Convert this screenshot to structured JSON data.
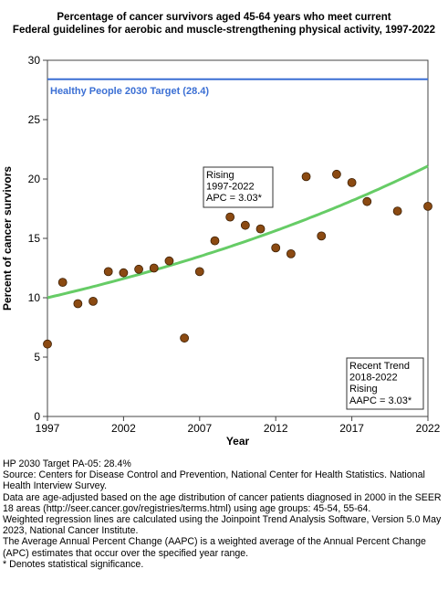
{
  "chart_data": {
    "type": "scatter",
    "title": [
      "Percentage of cancer survivors aged 45-64 years who meet current",
      "Federal guidelines for aerobic and muscle-strengthening physical activity, 1997-2022"
    ],
    "xlabel": "Year",
    "ylabel": "Percent of cancer survivors",
    "xlim": [
      1997,
      2022
    ],
    "ylim": [
      0,
      30
    ],
    "x_ticks": [
      "1997",
      "2002",
      "2007",
      "2012",
      "2017",
      "2022"
    ],
    "y_ticks": [
      "0",
      "5",
      "10",
      "15",
      "20",
      "25",
      "30"
    ],
    "grid": false,
    "target": {
      "label": "Healthy People 2030 Target (28.4)",
      "value": 28.4,
      "color": "#3b6fd4"
    },
    "points": [
      {
        "x": 1997,
        "y": 6.1
      },
      {
        "x": 1998,
        "y": 11.3
      },
      {
        "x": 1999,
        "y": 9.5
      },
      {
        "x": 2000,
        "y": 9.7
      },
      {
        "x": 2001,
        "y": 12.2
      },
      {
        "x": 2002,
        "y": 12.1
      },
      {
        "x": 2003,
        "y": 12.4
      },
      {
        "x": 2004,
        "y": 12.5
      },
      {
        "x": 2005,
        "y": 13.1
      },
      {
        "x": 2006,
        "y": 6.6
      },
      {
        "x": 2007,
        "y": 12.2
      },
      {
        "x": 2008,
        "y": 14.8
      },
      {
        "x": 2009,
        "y": 16.8
      },
      {
        "x": 2010,
        "y": 16.1
      },
      {
        "x": 2011,
        "y": 15.8
      },
      {
        "x": 2012,
        "y": 14.2
      },
      {
        "x": 2013,
        "y": 13.7
      },
      {
        "x": 2014,
        "y": 20.2
      },
      {
        "x": 2015,
        "y": 15.2
      },
      {
        "x": 2016,
        "y": 20.4
      },
      {
        "x": 2017,
        "y": 19.7
      },
      {
        "x": 2018,
        "y": 18.1
      },
      {
        "x": 2020,
        "y": 17.3
      },
      {
        "x": 2022,
        "y": 17.7
      }
    ],
    "point_color": "#8b4a12",
    "trend": {
      "type": "line",
      "start": [
        1997,
        10.0
      ],
      "end": [
        2022,
        20.8
      ],
      "apc": 3.03,
      "color": "#66cc66"
    },
    "annotations": [
      {
        "lines": [
          "Rising",
          "1997-2022",
          "APC =  3.03*"
        ]
      },
      {
        "lines": [
          "Recent Trend",
          "2018-2022",
          "Rising",
          "AAPC =  3.03*"
        ]
      }
    ]
  },
  "notes": [
    "HP 2030 Target PA-05: 28.4%",
    "Source: Centers for Disease Control and Prevention, National Center for Health Statistics. National Health Interview Survey.",
    "Data are age-adjusted based on the age distribution of cancer patients diagnosed in 2000 in the SEER 18 areas (http://seer.cancer.gov/registries/terms.html) using age groups: 45-54, 55-64.",
    "Weighted regression lines are calculated using the Joinpoint Trend Analysis Software, Version 5.0 May 2023, National Cancer Institute.",
    "The Average Annual Percent Change (AAPC) is a weighted average of the Annual Percent Change (APC) estimates that occur over the specified year range.",
    "* Denotes statistical significance."
  ]
}
